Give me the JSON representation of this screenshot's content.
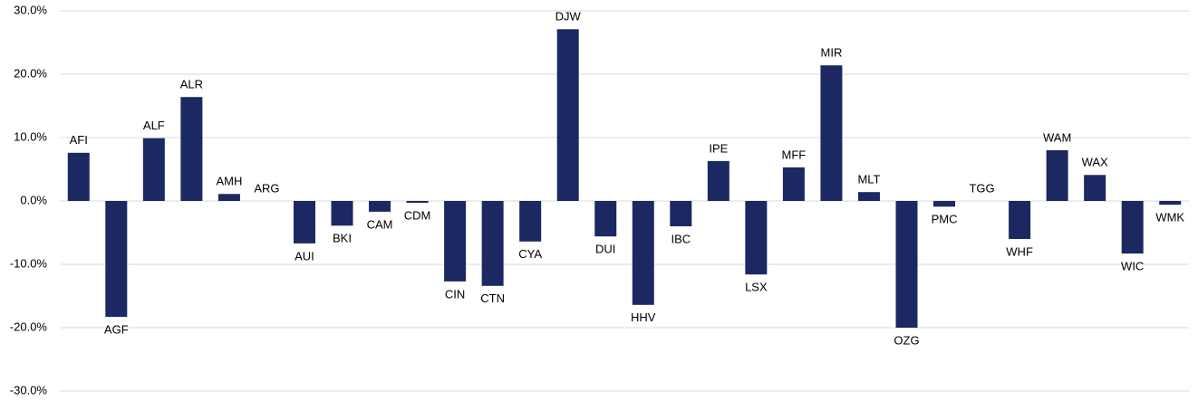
{
  "chart_data": {
    "type": "bar",
    "categories": [
      "AFI",
      "AGF",
      "ALF",
      "ALR",
      "AMH",
      "ARG",
      "AUI",
      "BKI",
      "CAM",
      "CDM",
      "CIN",
      "CTN",
      "CYA",
      "DJW",
      "DUI",
      "HHV",
      "IBC",
      "IPE",
      "LSX",
      "MFF",
      "MIR",
      "MLT",
      "OZG",
      "PMC",
      "TGG",
      "WHF",
      "WAM",
      "WAX",
      "WIC",
      "WMK"
    ],
    "values": [
      7.6,
      -18.3,
      9.9,
      16.4,
      1.1,
      0,
      -6.7,
      -3.9,
      -1.7,
      -0.3,
      -12.7,
      -13.4,
      -6.4,
      27.1,
      -5.6,
      -16.4,
      -4.0,
      6.3,
      -11.6,
      5.3,
      21.4,
      1.4,
      -20.0,
      -0.9,
      0,
      -6.0,
      8.0,
      4.1,
      -8.3,
      -0.6
    ],
    "color": "#1c2861",
    "ylim": [
      -30,
      30
    ],
    "yticks": [
      {
        "value": -30,
        "label": "-30.0%"
      },
      {
        "value": -20,
        "label": "-20.0%"
      },
      {
        "value": -10,
        "label": "-10.0%"
      },
      {
        "value": 0,
        "label": "0.0%"
      },
      {
        "value": 10,
        "label": "10.0%"
      },
      {
        "value": 20,
        "label": "20.0%"
      },
      {
        "value": 30,
        "label": "30.0%"
      }
    ],
    "grid": true
  }
}
